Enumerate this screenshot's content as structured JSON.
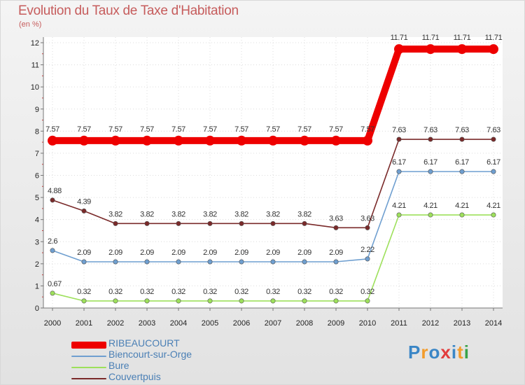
{
  "chart_data": {
    "type": "line",
    "title": "Evolution du Taux de Taxe d'Habitation",
    "unit_label": "(en %)",
    "x": [
      "2000",
      "2001",
      "2002",
      "2003",
      "2004",
      "2005",
      "2006",
      "2007",
      "2008",
      "2009",
      "2010",
      "2011",
      "2012",
      "2013",
      "2014"
    ],
    "ylim": [
      0,
      12
    ],
    "yticks": [
      "0",
      "1",
      "2",
      "3",
      "4",
      "5",
      "6",
      "7",
      "8",
      "9",
      "10",
      "11",
      "12"
    ],
    "series": [
      {
        "name": "RIBEAUCOURT",
        "color": "#ee0000",
        "values": [
          7.57,
          7.57,
          7.57,
          7.57,
          7.57,
          7.57,
          7.57,
          7.57,
          7.57,
          7.57,
          7.57,
          11.71,
          11.71,
          11.71,
          11.71
        ],
        "labels": [
          "7.57",
          "7.57",
          "7.57",
          "7.57",
          "7.57",
          "7.57",
          "7.57",
          "7.57",
          "7.57",
          "7.57",
          "7.57",
          "11.71",
          "11.71",
          "11.71",
          "11.71"
        ]
      },
      {
        "name": "Biencourt-sur-Orge",
        "color": "#6f9fd0",
        "values": [
          2.6,
          2.09,
          2.09,
          2.09,
          2.09,
          2.09,
          2.09,
          2.09,
          2.09,
          2.09,
          2.22,
          6.17,
          6.17,
          6.17,
          6.17
        ],
        "labels": [
          "2.6",
          "2.09",
          "2.09",
          "2.09",
          "2.09",
          "2.09",
          "2.09",
          "2.09",
          "2.09",
          "2.09",
          "2.22",
          "6.17",
          "6.17",
          "6.17",
          "6.17"
        ]
      },
      {
        "name": "Bure",
        "color": "#9de05b",
        "values": [
          0.67,
          0.32,
          0.32,
          0.32,
          0.32,
          0.32,
          0.32,
          0.32,
          0.32,
          0.32,
          0.32,
          4.21,
          4.21,
          4.21,
          4.21
        ],
        "labels": [
          "0.67",
          "0.32",
          "0.32",
          "0.32",
          "0.32",
          "0.32",
          "0.32",
          "0.32",
          "0.32",
          "0.32",
          "0.32",
          "4.21",
          "4.21",
          "4.21",
          "4.21"
        ]
      },
      {
        "name": "Couvertpuis",
        "color": "#7a2a2a",
        "values": [
          4.88,
          4.39,
          3.82,
          3.82,
          3.82,
          3.82,
          3.82,
          3.82,
          3.82,
          3.63,
          3.63,
          7.63,
          7.63,
          7.63,
          7.63
        ],
        "labels": [
          "4.88",
          "4.39",
          "3.82",
          "3.82",
          "3.82",
          "3.82",
          "3.82",
          "3.82",
          "3.82",
          "3.63",
          "3.63",
          "7.63",
          "7.63",
          "7.63",
          "7.63"
        ]
      }
    ],
    "legend": "bottom-left"
  },
  "brand": {
    "logo_letters": [
      "P",
      "r",
      "o",
      "x",
      "i",
      "t",
      "i"
    ],
    "logo_colors": [
      "#3a86c6",
      "#f39c2b",
      "#3a86c6",
      "#e23c3c",
      "#3a86c6",
      "#f39c2b",
      "#3aa34a"
    ]
  }
}
